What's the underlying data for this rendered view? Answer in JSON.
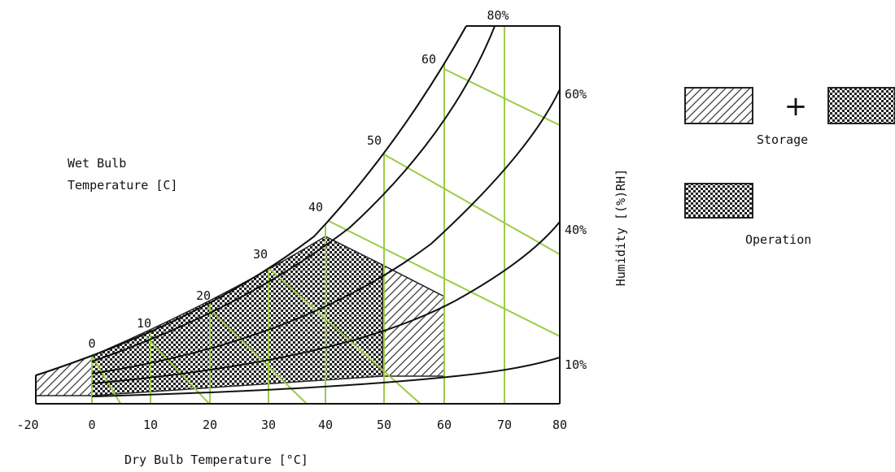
{
  "diagram": {
    "wet_bulb_title_line1": "Wet Bulb",
    "wet_bulb_title_line2": "Temperature [C]",
    "dry_bulb_title": "Dry Bulb Temperature [°C]",
    "humidity_title": "Humidity [(%)RH]",
    "x_ticks": [
      "-20",
      "0",
      "10",
      "20",
      "30",
      "40",
      "50",
      "60",
      "70",
      "80"
    ],
    "wet_bulb_ticks": [
      "0",
      "10",
      "20",
      "30",
      "40",
      "50",
      "60"
    ],
    "rh_labels": [
      "80%",
      "60%",
      "40%",
      "10%"
    ]
  },
  "legend": {
    "plus": "+",
    "storage_label": "Storage",
    "operation_label": "Operation"
  },
  "colors": {
    "green_grid": "#9ccc45",
    "ink": "#111111",
    "background": "#ffffff"
  }
}
